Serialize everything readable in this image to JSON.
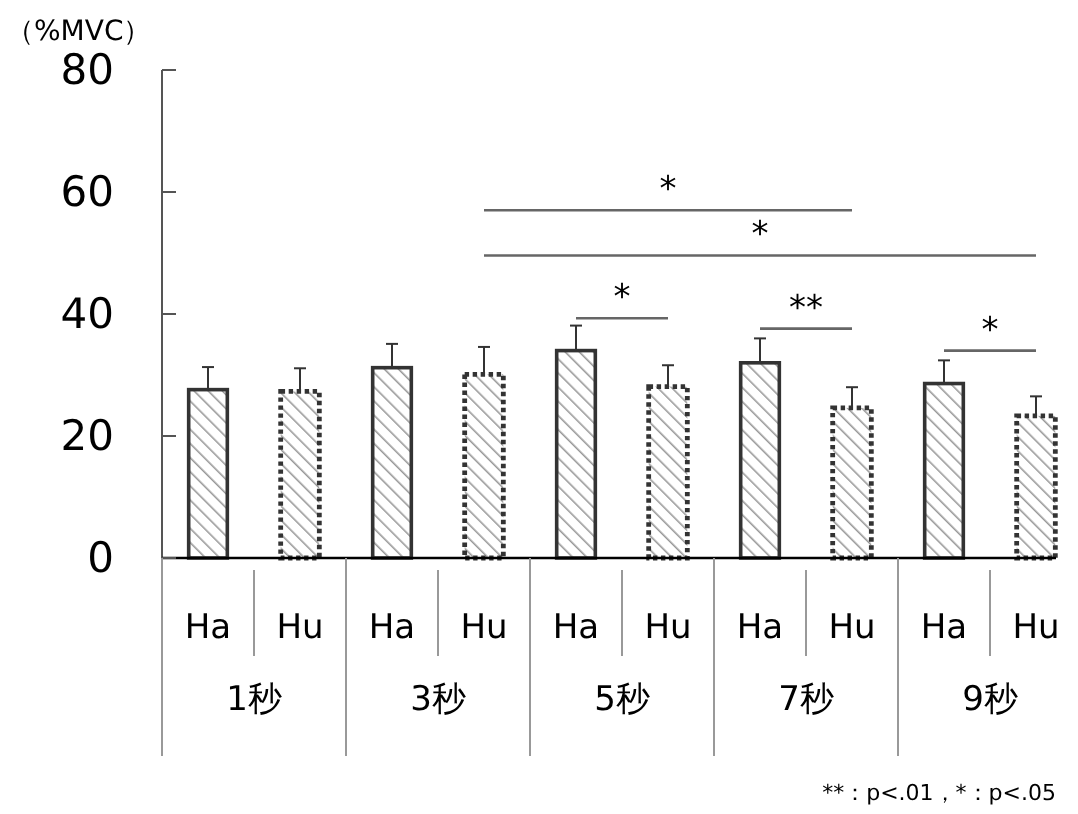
{
  "chart_data": {
    "type": "bar",
    "ylabel": "（%MVC）",
    "categories": [
      "1秒",
      "3秒",
      "5秒",
      "7秒",
      "9秒"
    ],
    "series": [
      {
        "name": "Ha",
        "color": "#333333",
        "line_style": "solid",
        "values": [
          27.6,
          31.2,
          34.0,
          32.0,
          28.6
        ],
        "errors": [
          [
            27.6,
            31.3
          ],
          [
            31.2,
            35.1
          ],
          [
            34.0,
            38.1
          ],
          [
            32.0,
            36.0
          ],
          [
            28.6,
            32.4
          ]
        ]
      },
      {
        "name": "Hu",
        "color": "#333333",
        "line_style": "dotted",
        "values": [
          27.3,
          30.1,
          28.1,
          24.6,
          23.3
        ],
        "errors": [
          [
            27.3,
            31.1
          ],
          [
            30.1,
            34.6
          ],
          [
            28.1,
            31.6
          ],
          [
            24.6,
            28.0
          ],
          [
            23.3,
            26.5
          ]
        ]
      }
    ],
    "ylim": [
      0,
      80
    ],
    "yticks": [
      0,
      20,
      40,
      60,
      80
    ],
    "grid": false,
    "annotations": [
      "*",
      "*",
      "*",
      "**",
      "*",
      "**：p<.01，*：p<.05"
    ]
  }
}
